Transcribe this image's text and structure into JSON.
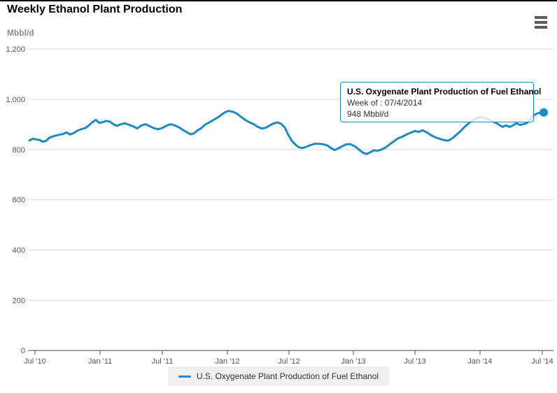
{
  "header": {
    "title": "Weekly Ethanol Plant Production"
  },
  "toolbar": {
    "export_menu_icon": "hamburger-menu-icon"
  },
  "tooltip": {
    "title": "U.S. Oxygenate Plant Production of Fuel Ethanol",
    "week_line": "Week of : 07/4/2014",
    "value_line": "948 Mbbl/d"
  },
  "legend": {
    "label": "U.S. Oxygenate Plant Production of Fuel Ethanol"
  },
  "chart_data": {
    "type": "line",
    "title": "Weekly Ethanol Plant Production",
    "y_unit_label": "Mbbl/d",
    "ylim": [
      0,
      1200
    ],
    "y_ticks": [
      0,
      200,
      400,
      600,
      800,
      1000,
      1200
    ],
    "x_tick_labels": [
      "Jul '10",
      "Jan '11",
      "Jul '11",
      "Jan '12",
      "Jul '12",
      "Jan '13",
      "Jul '13",
      "Jan '14",
      "Jul '14"
    ],
    "x_range": [
      "Jul 2010",
      "Jul 2014"
    ],
    "grid": "horizontal gridlines on, light gray",
    "legend_position": "bottom-center",
    "colors": {
      "series": "#1e8ac4",
      "gridline": "#d9d9d9",
      "axis": "#4d4d4d",
      "tick_label": "#555555"
    },
    "highlighted_point": {
      "week_of": "07/4/2014",
      "value": 948,
      "unit": "Mbbl/d"
    },
    "series": [
      {
        "name": "U.S. Oxygenate Plant Production of Fuel Ethanol",
        "color": "#1e8ac4",
        "x_unit": "pixel position along time axis (Jul 2010 to Jul 4 2014), weekly data",
        "points": [
          [
            42,
            836
          ],
          [
            47,
            843
          ],
          [
            52,
            840
          ],
          [
            57,
            838
          ],
          [
            61,
            831
          ],
          [
            66,
            835
          ],
          [
            70,
            846
          ],
          [
            75,
            852
          ],
          [
            80,
            856
          ],
          [
            85,
            859
          ],
          [
            90,
            862
          ],
          [
            95,
            868
          ],
          [
            100,
            860
          ],
          [
            105,
            865
          ],
          [
            110,
            874
          ],
          [
            116,
            881
          ],
          [
            122,
            886
          ],
          [
            127,
            896
          ],
          [
            132,
            909
          ],
          [
            137,
            918
          ],
          [
            142,
            906
          ],
          [
            147,
            909
          ],
          [
            152,
            914
          ],
          [
            157,
            911
          ],
          [
            162,
            901
          ],
          [
            167,
            894
          ],
          [
            172,
            900
          ],
          [
            178,
            905
          ],
          [
            184,
            899
          ],
          [
            190,
            893
          ],
          [
            196,
            884
          ],
          [
            202,
            896
          ],
          [
            208,
            901
          ],
          [
            214,
            893
          ],
          [
            220,
            885
          ],
          [
            226,
            881
          ],
          [
            232,
            886
          ],
          [
            238,
            895
          ],
          [
            244,
            901
          ],
          [
            250,
            896
          ],
          [
            256,
            888
          ],
          [
            262,
            877
          ],
          [
            267,
            869
          ],
          [
            272,
            861
          ],
          [
            277,
            864
          ],
          [
            282,
            876
          ],
          [
            287,
            884
          ],
          [
            293,
            899
          ],
          [
            300,
            910
          ],
          [
            307,
            921
          ],
          [
            314,
            933
          ],
          [
            320,
            946
          ],
          [
            326,
            954
          ],
          [
            332,
            951
          ],
          [
            338,
            944
          ],
          [
            344,
            931
          ],
          [
            350,
            919
          ],
          [
            356,
            909
          ],
          [
            362,
            902
          ],
          [
            368,
            891
          ],
          [
            374,
            884
          ],
          [
            379,
            886
          ],
          [
            385,
            895
          ],
          [
            391,
            904
          ],
          [
            397,
            908
          ],
          [
            402,
            902
          ],
          [
            407,
            888
          ],
          [
            412,
            858
          ],
          [
            417,
            835
          ],
          [
            422,
            820
          ],
          [
            427,
            809
          ],
          [
            432,
            806
          ],
          [
            438,
            811
          ],
          [
            444,
            818
          ],
          [
            450,
            823
          ],
          [
            456,
            823
          ],
          [
            462,
            821
          ],
          [
            468,
            816
          ],
          [
            473,
            806
          ],
          [
            478,
            798
          ],
          [
            483,
            804
          ],
          [
            489,
            813
          ],
          [
            495,
            821
          ],
          [
            501,
            821
          ],
          [
            507,
            813
          ],
          [
            513,
            800
          ],
          [
            519,
            787
          ],
          [
            524,
            782
          ],
          [
            529,
            789
          ],
          [
            534,
            797
          ],
          [
            539,
            795
          ],
          [
            545,
            800
          ],
          [
            551,
            808
          ],
          [
            557,
            821
          ],
          [
            563,
            833
          ],
          [
            569,
            845
          ],
          [
            575,
            851
          ],
          [
            581,
            860
          ],
          [
            587,
            867
          ],
          [
            593,
            874
          ],
          [
            598,
            870
          ],
          [
            604,
            877
          ],
          [
            610,
            868
          ],
          [
            616,
            857
          ],
          [
            622,
            849
          ],
          [
            628,
            843
          ],
          [
            634,
            838
          ],
          [
            640,
            835
          ],
          [
            646,
            844
          ],
          [
            652,
            858
          ],
          [
            658,
            873
          ],
          [
            664,
            890
          ],
          [
            670,
            905
          ],
          [
            676,
            917
          ],
          [
            682,
            926
          ],
          [
            688,
            930
          ],
          [
            694,
            925
          ],
          [
            700,
            917
          ],
          [
            706,
            910
          ],
          [
            712,
            901
          ],
          [
            718,
            890
          ],
          [
            723,
            896
          ],
          [
            728,
            890
          ],
          [
            733,
            896
          ],
          [
            738,
            905
          ],
          [
            743,
            898
          ],
          [
            748,
            901
          ],
          [
            753,
            906
          ],
          [
            758,
            920
          ],
          [
            763,
            937
          ],
          [
            768,
            944
          ],
          [
            772,
            946
          ],
          [
            777,
            948
          ]
        ]
      }
    ]
  }
}
